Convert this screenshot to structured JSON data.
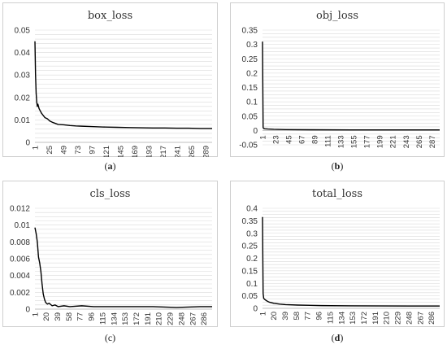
{
  "panels": [
    {
      "caption_letter": "a",
      "bold": true
    },
    {
      "caption_letter": "b",
      "bold": true
    },
    {
      "caption_letter": "c",
      "bold": false
    },
    {
      "caption_letter": "d",
      "bold": true
    }
  ],
  "colors": {
    "line": "#000000",
    "grid": "#d9d9d9",
    "frame": "#cfcfcf",
    "text": "#333333"
  },
  "chart_data": [
    {
      "type": "line",
      "title": "box_loss",
      "xlabel": "",
      "ylabel": "",
      "ylim": [
        0,
        0.05
      ],
      "yticks": [
        0,
        0.01,
        0.02,
        0.03,
        0.04,
        0.05
      ],
      "ytick_labels": [
        "0",
        "0.01",
        "0.02",
        "0.03",
        "0.04",
        "0.05"
      ],
      "xticks": [
        1,
        25,
        49,
        73,
        97,
        121,
        145,
        169,
        193,
        217,
        241,
        265,
        289
      ],
      "x_max": 300,
      "grid": "horizontal minor every 0.002",
      "series": [
        {
          "x": [
            1,
            2,
            3,
            4,
            5,
            6,
            8,
            10,
            12,
            15,
            18,
            22,
            26,
            30,
            35,
            40,
            50,
            60,
            70,
            80,
            100,
            120,
            140,
            160,
            180,
            200,
            220,
            240,
            260,
            280,
            300
          ],
          "values": [
            0.045,
            0.03,
            0.022,
            0.018,
            0.016,
            0.017,
            0.015,
            0.014,
            0.013,
            0.012,
            0.011,
            0.0105,
            0.0095,
            0.009,
            0.0085,
            0.008,
            0.0078,
            0.0075,
            0.0073,
            0.0072,
            0.007,
            0.0068,
            0.0067,
            0.0066,
            0.0065,
            0.0064,
            0.0064,
            0.0063,
            0.0063,
            0.0062,
            0.0062
          ]
        }
      ]
    },
    {
      "type": "line",
      "title": "obj_loss",
      "xlabel": "",
      "ylabel": "",
      "ylim": [
        -0.05,
        0.35
      ],
      "yticks": [
        -0.05,
        0,
        0.05,
        0.1,
        0.15,
        0.2,
        0.25,
        0.3,
        0.35
      ],
      "ytick_labels": [
        "-0.05",
        "0",
        "0.05",
        "0.1",
        "0.15",
        "0.2",
        "0.25",
        "0.3",
        "0.35"
      ],
      "xticks": [
        1,
        23,
        45,
        67,
        89,
        111,
        133,
        155,
        177,
        199,
        221,
        243,
        265,
        287
      ],
      "x_max": 300,
      "grid": "horizontal minor every 0.0125",
      "series": [
        {
          "x": [
            1,
            2,
            3,
            5,
            10,
            20,
            40,
            80,
            150,
            300
          ],
          "values": [
            0.31,
            0.01,
            0.007,
            0.006,
            0.005,
            0.004,
            0.003,
            0.0025,
            0.002,
            0.002
          ]
        }
      ]
    },
    {
      "type": "line",
      "title": "cls_loss",
      "xlabel": "",
      "ylabel": "",
      "ylim": [
        0,
        0.012
      ],
      "yticks": [
        0,
        0.002,
        0.004,
        0.006,
        0.008,
        0.01,
        0.012
      ],
      "ytick_labels": [
        "0",
        "0.002",
        "0.004",
        "0.006",
        "0.008",
        "0.01",
        "0.012"
      ],
      "xticks": [
        1,
        20,
        39,
        58,
        77,
        96,
        115,
        134,
        153,
        172,
        191,
        210,
        229,
        248,
        267,
        286
      ],
      "x_max": 300,
      "grid": "horizontal minor every 0.0005",
      "series": [
        {
          "x": [
            1,
            3,
            5,
            7,
            9,
            11,
            13,
            15,
            17,
            19,
            22,
            25,
            30,
            35,
            40,
            50,
            60,
            80,
            100,
            130,
            160,
            200,
            240,
            280,
            300
          ],
          "values": [
            0.0097,
            0.009,
            0.008,
            0.0062,
            0.0055,
            0.0045,
            0.003,
            0.0018,
            0.0012,
            0.0008,
            0.0006,
            0.0007,
            0.0004,
            0.0005,
            0.0003,
            0.0004,
            0.0003,
            0.0004,
            0.0003,
            0.0003,
            0.0003,
            0.0003,
            0.0002,
            0.0003,
            0.0003
          ]
        }
      ]
    },
    {
      "type": "line",
      "title": "total_loss",
      "xlabel": "",
      "ylabel": "",
      "ylim": [
        0,
        0.4
      ],
      "yticks": [
        0,
        0.05,
        0.1,
        0.15,
        0.2,
        0.25,
        0.3,
        0.35,
        0.4
      ],
      "ytick_labels": [
        "0",
        "0.05",
        "0.1",
        "0.15",
        "0.2",
        "0.25",
        "0.3",
        "0.35",
        "0.4"
      ],
      "xticks": [
        1,
        20,
        39,
        58,
        77,
        96,
        115,
        134,
        153,
        172,
        191,
        210,
        229,
        248,
        267,
        286
      ],
      "x_max": 300,
      "grid": "horizontal minor every 0.0125",
      "series": [
        {
          "x": [
            1,
            2,
            3,
            5,
            8,
            12,
            20,
            30,
            40,
            60,
            100,
            150,
            200,
            250,
            300
          ],
          "values": [
            0.365,
            0.06,
            0.04,
            0.035,
            0.03,
            0.025,
            0.02,
            0.017,
            0.015,
            0.013,
            0.011,
            0.01,
            0.0095,
            0.009,
            0.009
          ]
        }
      ]
    }
  ]
}
